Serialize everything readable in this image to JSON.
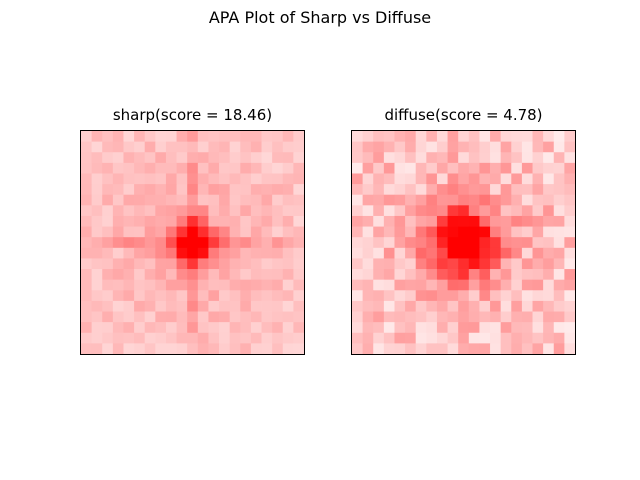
{
  "figure": {
    "suptitle": "APA Plot of Sharp vs Diffuse"
  },
  "chart_data": [
    {
      "type": "heatmap",
      "title": "sharp(score = 18.46)",
      "name": "sharp",
      "score": 18.46,
      "colormap": "white-to-red",
      "color_low": "#ffffff",
      "color_high": "#ff0000",
      "xticks": [],
      "yticks": [],
      "grid": false,
      "rows": 21,
      "cols": 21,
      "center": [
        10,
        10
      ],
      "peak_spread": 1.2,
      "cross_strength": 0.55,
      "cross_decay": 0.12,
      "noise": 0.08,
      "seed": 7
    },
    {
      "type": "heatmap",
      "title": "diffuse(score = 4.78)",
      "name": "diffuse",
      "score": 4.78,
      "colormap": "white-to-red",
      "color_low": "#ffffff",
      "color_high": "#ff0000",
      "xticks": [],
      "yticks": [],
      "grid": false,
      "rows": 21,
      "cols": 21,
      "center": [
        10,
        10
      ],
      "peak_spread": 2.2,
      "cross_strength": 0.2,
      "cross_decay": 0.18,
      "noise": 0.16,
      "seed": 23
    }
  ]
}
